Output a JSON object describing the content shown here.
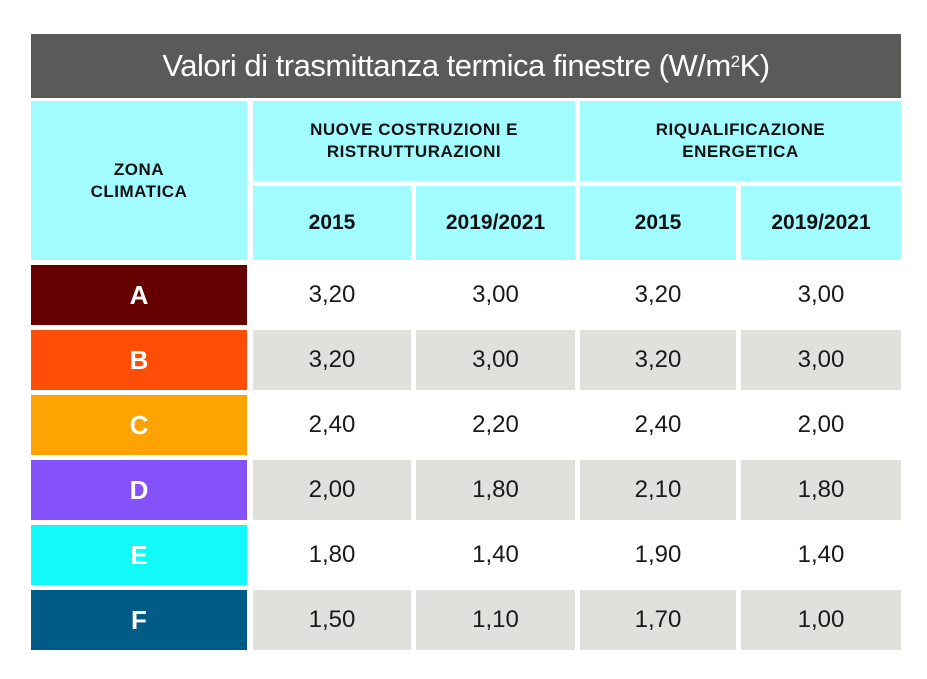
{
  "table": {
    "title_main": "Valori di trasmittanza termica finestre (W/m",
    "title_sup": "2",
    "title_tail": "K)",
    "zone_header": "ZONA CLIMATICA",
    "group1": "NUOVE COSTRUZIONI E RISTRUTTURAZIONI",
    "group2": "RIQUALIFICAZIONE ENERGETICA",
    "years": [
      "2015",
      "2019/2021",
      "2015",
      "2019/2021"
    ],
    "rows": [
      {
        "zone": "A",
        "color": "#660000",
        "values": [
          "3,20",
          "3,00",
          "3,20",
          "3,00"
        ]
      },
      {
        "zone": "B",
        "color": "#fd4d06",
        "values": [
          "3,20",
          "3,00",
          "3,20",
          "3,00"
        ]
      },
      {
        "zone": "C",
        "color": "#fea300",
        "values": [
          "2,40",
          "2,20",
          "2,40",
          "2,00"
        ]
      },
      {
        "zone": "D",
        "color": "#8451fb",
        "values": [
          "2,00",
          "1,80",
          "2,10",
          "1,80"
        ]
      },
      {
        "zone": "E",
        "color": "#11f9f9",
        "values": [
          "1,80",
          "1,40",
          "1,90",
          "1,40"
        ]
      },
      {
        "zone": "F",
        "color": "#005c87",
        "values": [
          "1,50",
          "1,10",
          "1,70",
          "1,00"
        ]
      }
    ]
  }
}
